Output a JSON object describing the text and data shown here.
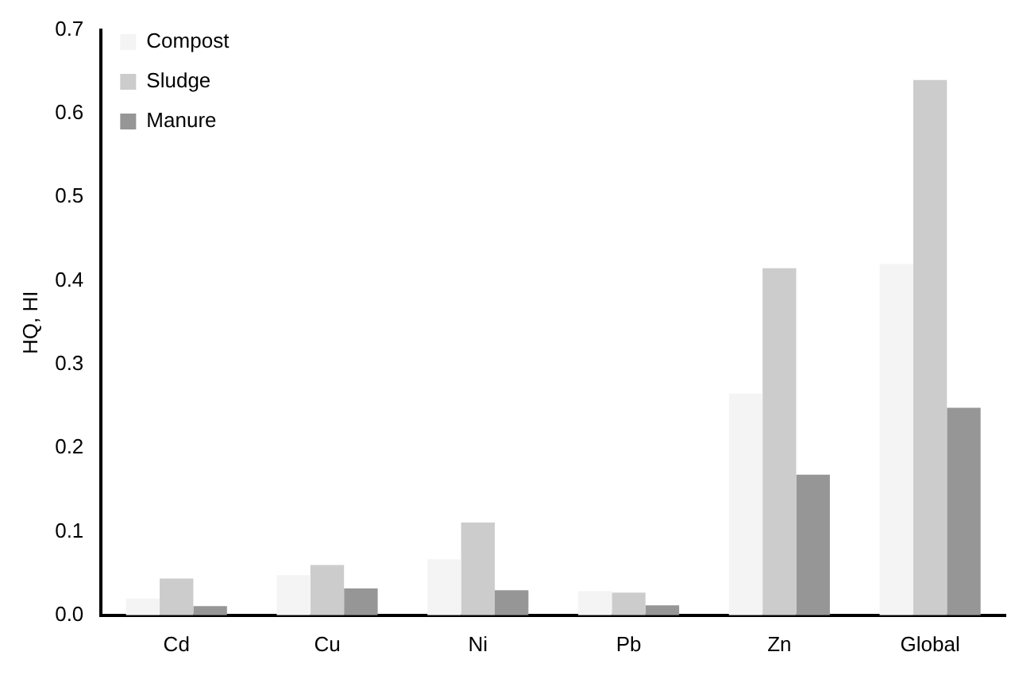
{
  "chart_data": {
    "type": "bar",
    "ylabel": "HQ, HI",
    "categories": [
      "Cd",
      "Cu",
      "Ni",
      "Pb",
      "Zn",
      "Global"
    ],
    "series": [
      {
        "name": "Compost",
        "color": "#f4f4f4",
        "values": [
          0.02,
          0.048,
          0.067,
          0.029,
          0.265,
          0.42
        ]
      },
      {
        "name": "Sludge",
        "color": "#cccccc",
        "values": [
          0.044,
          0.06,
          0.111,
          0.027,
          0.415,
          0.64
        ]
      },
      {
        "name": "Manure",
        "color": "#969696",
        "values": [
          0.011,
          0.032,
          0.03,
          0.012,
          0.168,
          0.248
        ]
      }
    ],
    "ylim": [
      0,
      0.7
    ],
    "yticks": [
      {
        "value": 0,
        "label": "0.0"
      },
      {
        "value": 0.1,
        "label": "0.1"
      },
      {
        "value": 0.2,
        "label": "0.2"
      },
      {
        "value": 0.3,
        "label": "0.3"
      },
      {
        "value": 0.4,
        "label": "0.4"
      },
      {
        "value": 0.5,
        "label": "0.5"
      },
      {
        "value": 0.6,
        "label": "0.6"
      },
      {
        "value": 0.7,
        "label": "0.7"
      }
    ],
    "grid": false,
    "legend": "top left"
  }
}
